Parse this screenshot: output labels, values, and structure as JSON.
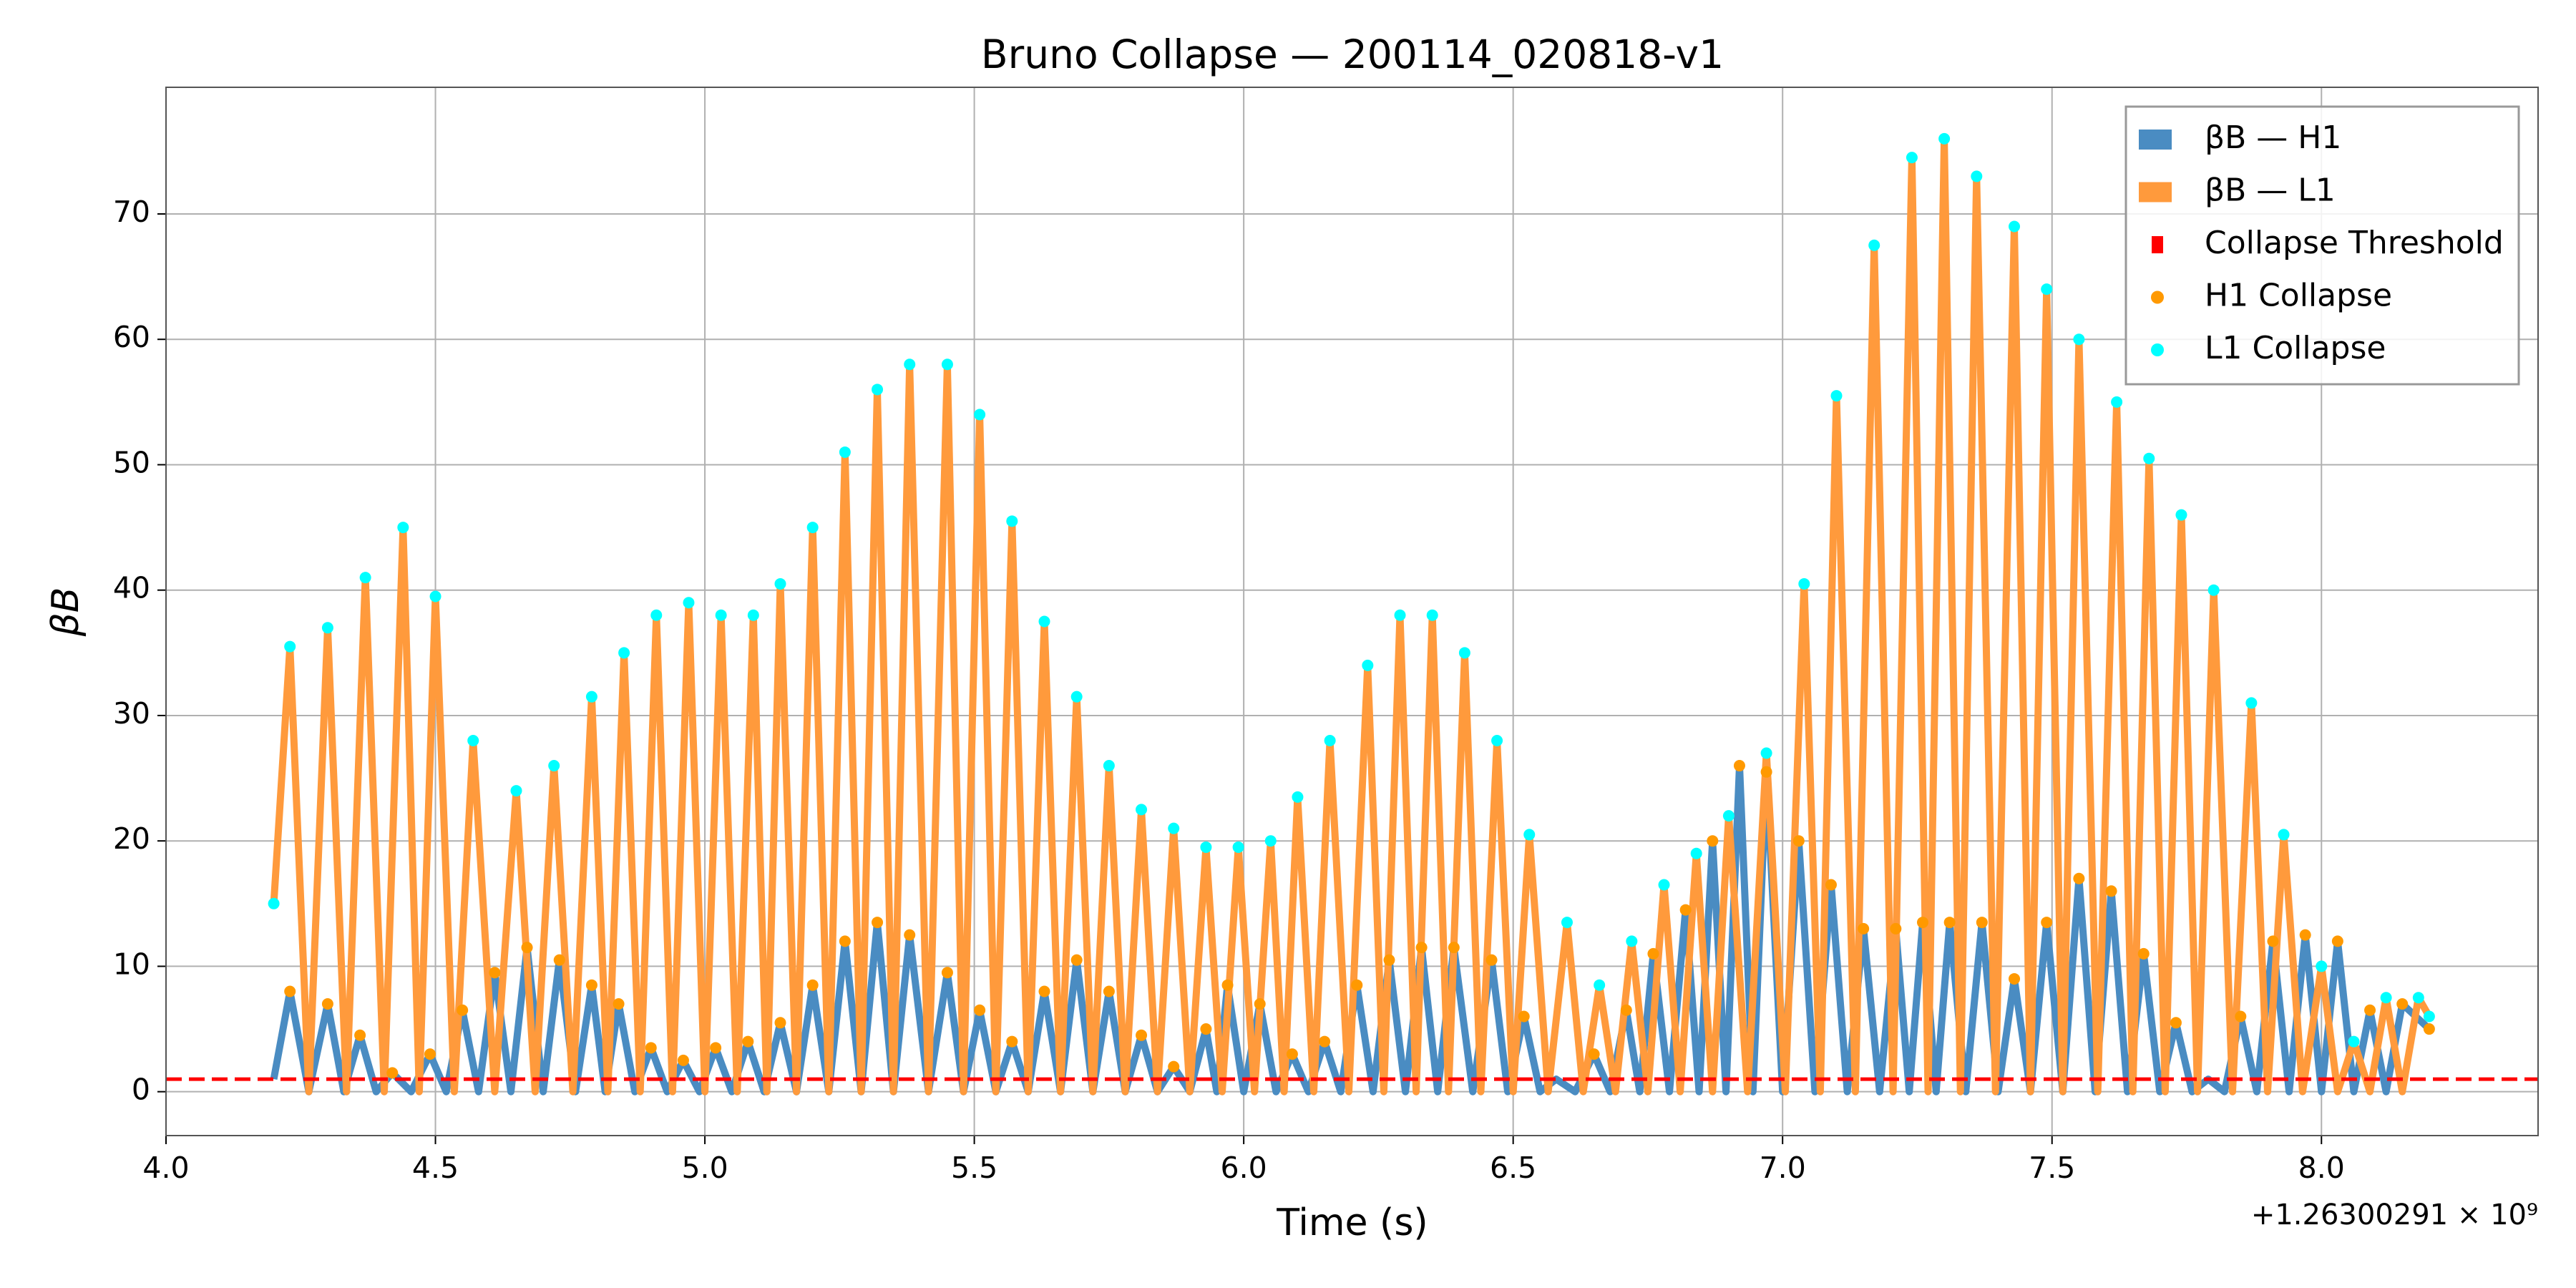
{
  "chart_data": {
    "type": "line",
    "title": "Bruno Collapse — 200114_020818-v1",
    "xlabel": "Time (s)",
    "ylabel": "βB",
    "x_offset_label": "+1.26300291 × 10⁹",
    "xlim": [
      4.0,
      8.402
    ],
    "ylim": [
      -3.5,
      80.1
    ],
    "xticks": [
      {
        "value": 4,
        "label": "4.0"
      },
      4.5,
      {
        "value": 5,
        "label": "5.0"
      },
      5.5,
      {
        "value": 6,
        "label": "6.0"
      },
      6.5,
      {
        "value": 7,
        "label": "7.0"
      },
      7.5,
      {
        "value": 8,
        "label": "8.0"
      }
    ],
    "yticks": [
      0,
      10,
      20,
      30,
      40,
      50,
      60,
      70
    ],
    "grid": true,
    "legend": "upper right",
    "threshold": {
      "name": "Collapse Threshold",
      "value": 1,
      "color": "#ff0000"
    },
    "series": [
      {
        "name": "βB — H1",
        "color": "#4a8cc2",
        "collapse_name": "H1 Collapse",
        "collapse_color": "#ff9900",
        "x": [
          4.2,
          4.23,
          4.265,
          4.3,
          4.33,
          4.36,
          4.39,
          4.42,
          4.455,
          4.49,
          4.52,
          4.55,
          4.58,
          4.61,
          4.64,
          4.67,
          4.7,
          4.73,
          4.76,
          4.79,
          4.815,
          4.84,
          4.87,
          4.9,
          4.93,
          4.96,
          4.99,
          5.02,
          5.05,
          5.08,
          5.11,
          5.14,
          5.17,
          5.2,
          5.23,
          5.26,
          5.29,
          5.32,
          5.35,
          5.38,
          5.415,
          5.45,
          5.48,
          5.51,
          5.54,
          5.57,
          5.6,
          5.63,
          5.66,
          5.69,
          5.72,
          5.75,
          5.78,
          5.81,
          5.84,
          5.87,
          5.9,
          5.93,
          5.95,
          5.97,
          6.0,
          6.03,
          6.06,
          6.09,
          6.12,
          6.15,
          6.18,
          6.21,
          6.24,
          6.27,
          6.3,
          6.33,
          6.36,
          6.39,
          6.425,
          6.46,
          6.49,
          6.52,
          6.55,
          6.58,
          6.615,
          6.65,
          6.68,
          6.71,
          6.735,
          6.76,
          6.79,
          6.82,
          6.845,
          6.87,
          6.895,
          6.92,
          6.945,
          6.97,
          7.0,
          7.03,
          7.06,
          7.09,
          7.12,
          7.15,
          7.18,
          7.21,
          7.235,
          7.26,
          7.285,
          7.31,
          7.34,
          7.37,
          7.4,
          7.43,
          7.46,
          7.49,
          7.52,
          7.55,
          7.58,
          7.61,
          7.64,
          7.67,
          7.7,
          7.73,
          7.76,
          7.79,
          7.82,
          7.85,
          7.88,
          7.91,
          7.94,
          7.97,
          8.0,
          8.03,
          8.06,
          8.09,
          8.12,
          8.15,
          8.2
        ],
        "values": [
          1,
          8,
          0,
          7,
          0,
          4.5,
          0,
          1.5,
          0,
          3,
          0,
          6.5,
          0,
          9.5,
          0,
          11.5,
          0,
          10.5,
          0,
          8.5,
          0,
          7,
          0,
          3.5,
          0,
          2.5,
          0,
          3.5,
          0,
          4,
          0,
          5.5,
          0,
          8.5,
          0,
          12,
          0,
          13.5,
          0,
          12.5,
          0,
          9.5,
          0,
          6.5,
          0,
          4,
          0,
          8,
          0,
          10.5,
          0,
          8,
          0,
          4.5,
          0,
          2,
          0,
          5,
          0,
          8.5,
          0,
          7,
          0,
          3,
          0,
          4,
          0,
          8.5,
          0,
          10.5,
          0,
          11.5,
          0,
          11.5,
          0,
          10.5,
          0,
          6,
          0,
          1,
          0,
          3,
          0,
          6.5,
          0,
          11,
          0,
          14.5,
          0,
          20,
          0,
          26,
          0,
          25.5,
          0,
          20,
          0,
          16.5,
          0,
          13,
          0,
          13,
          0,
          13.5,
          0,
          13.5,
          0,
          13.5,
          0,
          9,
          0,
          13.5,
          0,
          17,
          0,
          16,
          0,
          11,
          0,
          5.5,
          0,
          1,
          0,
          6,
          0,
          12,
          0,
          12.5,
          0,
          12,
          0,
          6.5,
          0,
          7,
          5
        ]
      },
      {
        "name": "βB — L1",
        "color": "#ff9a3c",
        "collapse_name": "L1 Collapse",
        "collapse_color": "#00ffff",
        "x": [
          4.2,
          4.23,
          4.265,
          4.3,
          4.335,
          4.37,
          4.405,
          4.44,
          4.47,
          4.5,
          4.535,
          4.57,
          4.61,
          4.65,
          4.685,
          4.72,
          4.755,
          4.79,
          4.82,
          4.85,
          4.88,
          4.91,
          4.94,
          4.97,
          5.0,
          5.03,
          5.06,
          5.09,
          5.115,
          5.14,
          5.17,
          5.2,
          5.23,
          5.26,
          5.29,
          5.32,
          5.35,
          5.38,
          5.415,
          5.45,
          5.48,
          5.51,
          5.54,
          5.57,
          5.6,
          5.63,
          5.66,
          5.69,
          5.72,
          5.75,
          5.78,
          5.81,
          5.84,
          5.87,
          5.9,
          5.93,
          5.96,
          5.99,
          6.02,
          6.05,
          6.075,
          6.1,
          6.13,
          6.16,
          6.195,
          6.23,
          6.26,
          6.29,
          6.32,
          6.35,
          6.38,
          6.41,
          6.44,
          6.47,
          6.5,
          6.53,
          6.565,
          6.6,
          6.63,
          6.66,
          6.69,
          6.72,
          6.75,
          6.78,
          6.81,
          6.84,
          6.87,
          6.9,
          6.935,
          6.97,
          7.005,
          7.04,
          7.07,
          7.1,
          7.135,
          7.17,
          7.205,
          7.24,
          7.27,
          7.3,
          7.33,
          7.36,
          7.395,
          7.43,
          7.46,
          7.49,
          7.52,
          7.55,
          7.585,
          7.62,
          7.65,
          7.68,
          7.71,
          7.74,
          7.77,
          7.8,
          7.835,
          7.87,
          7.9,
          7.93,
          7.965,
          8.0,
          8.03,
          8.06,
          8.09,
          8.12,
          8.15,
          8.18,
          8.2
        ],
        "values": [
          15,
          35.5,
          0,
          37,
          0,
          41,
          0,
          45,
          0,
          39.5,
          0,
          28,
          0,
          24,
          0,
          26,
          0,
          31.5,
          0,
          35,
          0,
          38,
          0,
          39,
          0,
          38,
          0,
          38,
          0,
          40.5,
          0,
          45,
          0,
          51,
          0,
          56,
          0,
          58,
          0,
          58,
          0,
          54,
          0,
          45.5,
          0,
          37.5,
          0,
          31.5,
          0,
          26,
          0,
          22.5,
          0,
          21,
          0,
          19.5,
          0,
          19.5,
          0,
          20,
          0,
          23.5,
          0,
          28,
          0,
          34,
          0,
          38,
          0,
          38,
          0,
          35,
          0,
          28,
          0,
          20.5,
          0,
          13.5,
          0,
          8.5,
          0,
          12,
          0,
          16.5,
          0,
          19,
          0,
          22,
          0,
          27,
          0,
          40.5,
          0,
          55.5,
          0,
          67.5,
          0,
          74.5,
          0,
          76,
          0,
          73,
          0,
          69,
          0,
          64,
          0,
          60,
          0,
          55,
          0,
          50.5,
          0,
          46,
          0,
          40,
          0,
          31,
          0,
          20.5,
          0,
          10,
          0,
          4,
          0,
          7.5,
          0,
          7.5,
          6
        ]
      }
    ]
  }
}
